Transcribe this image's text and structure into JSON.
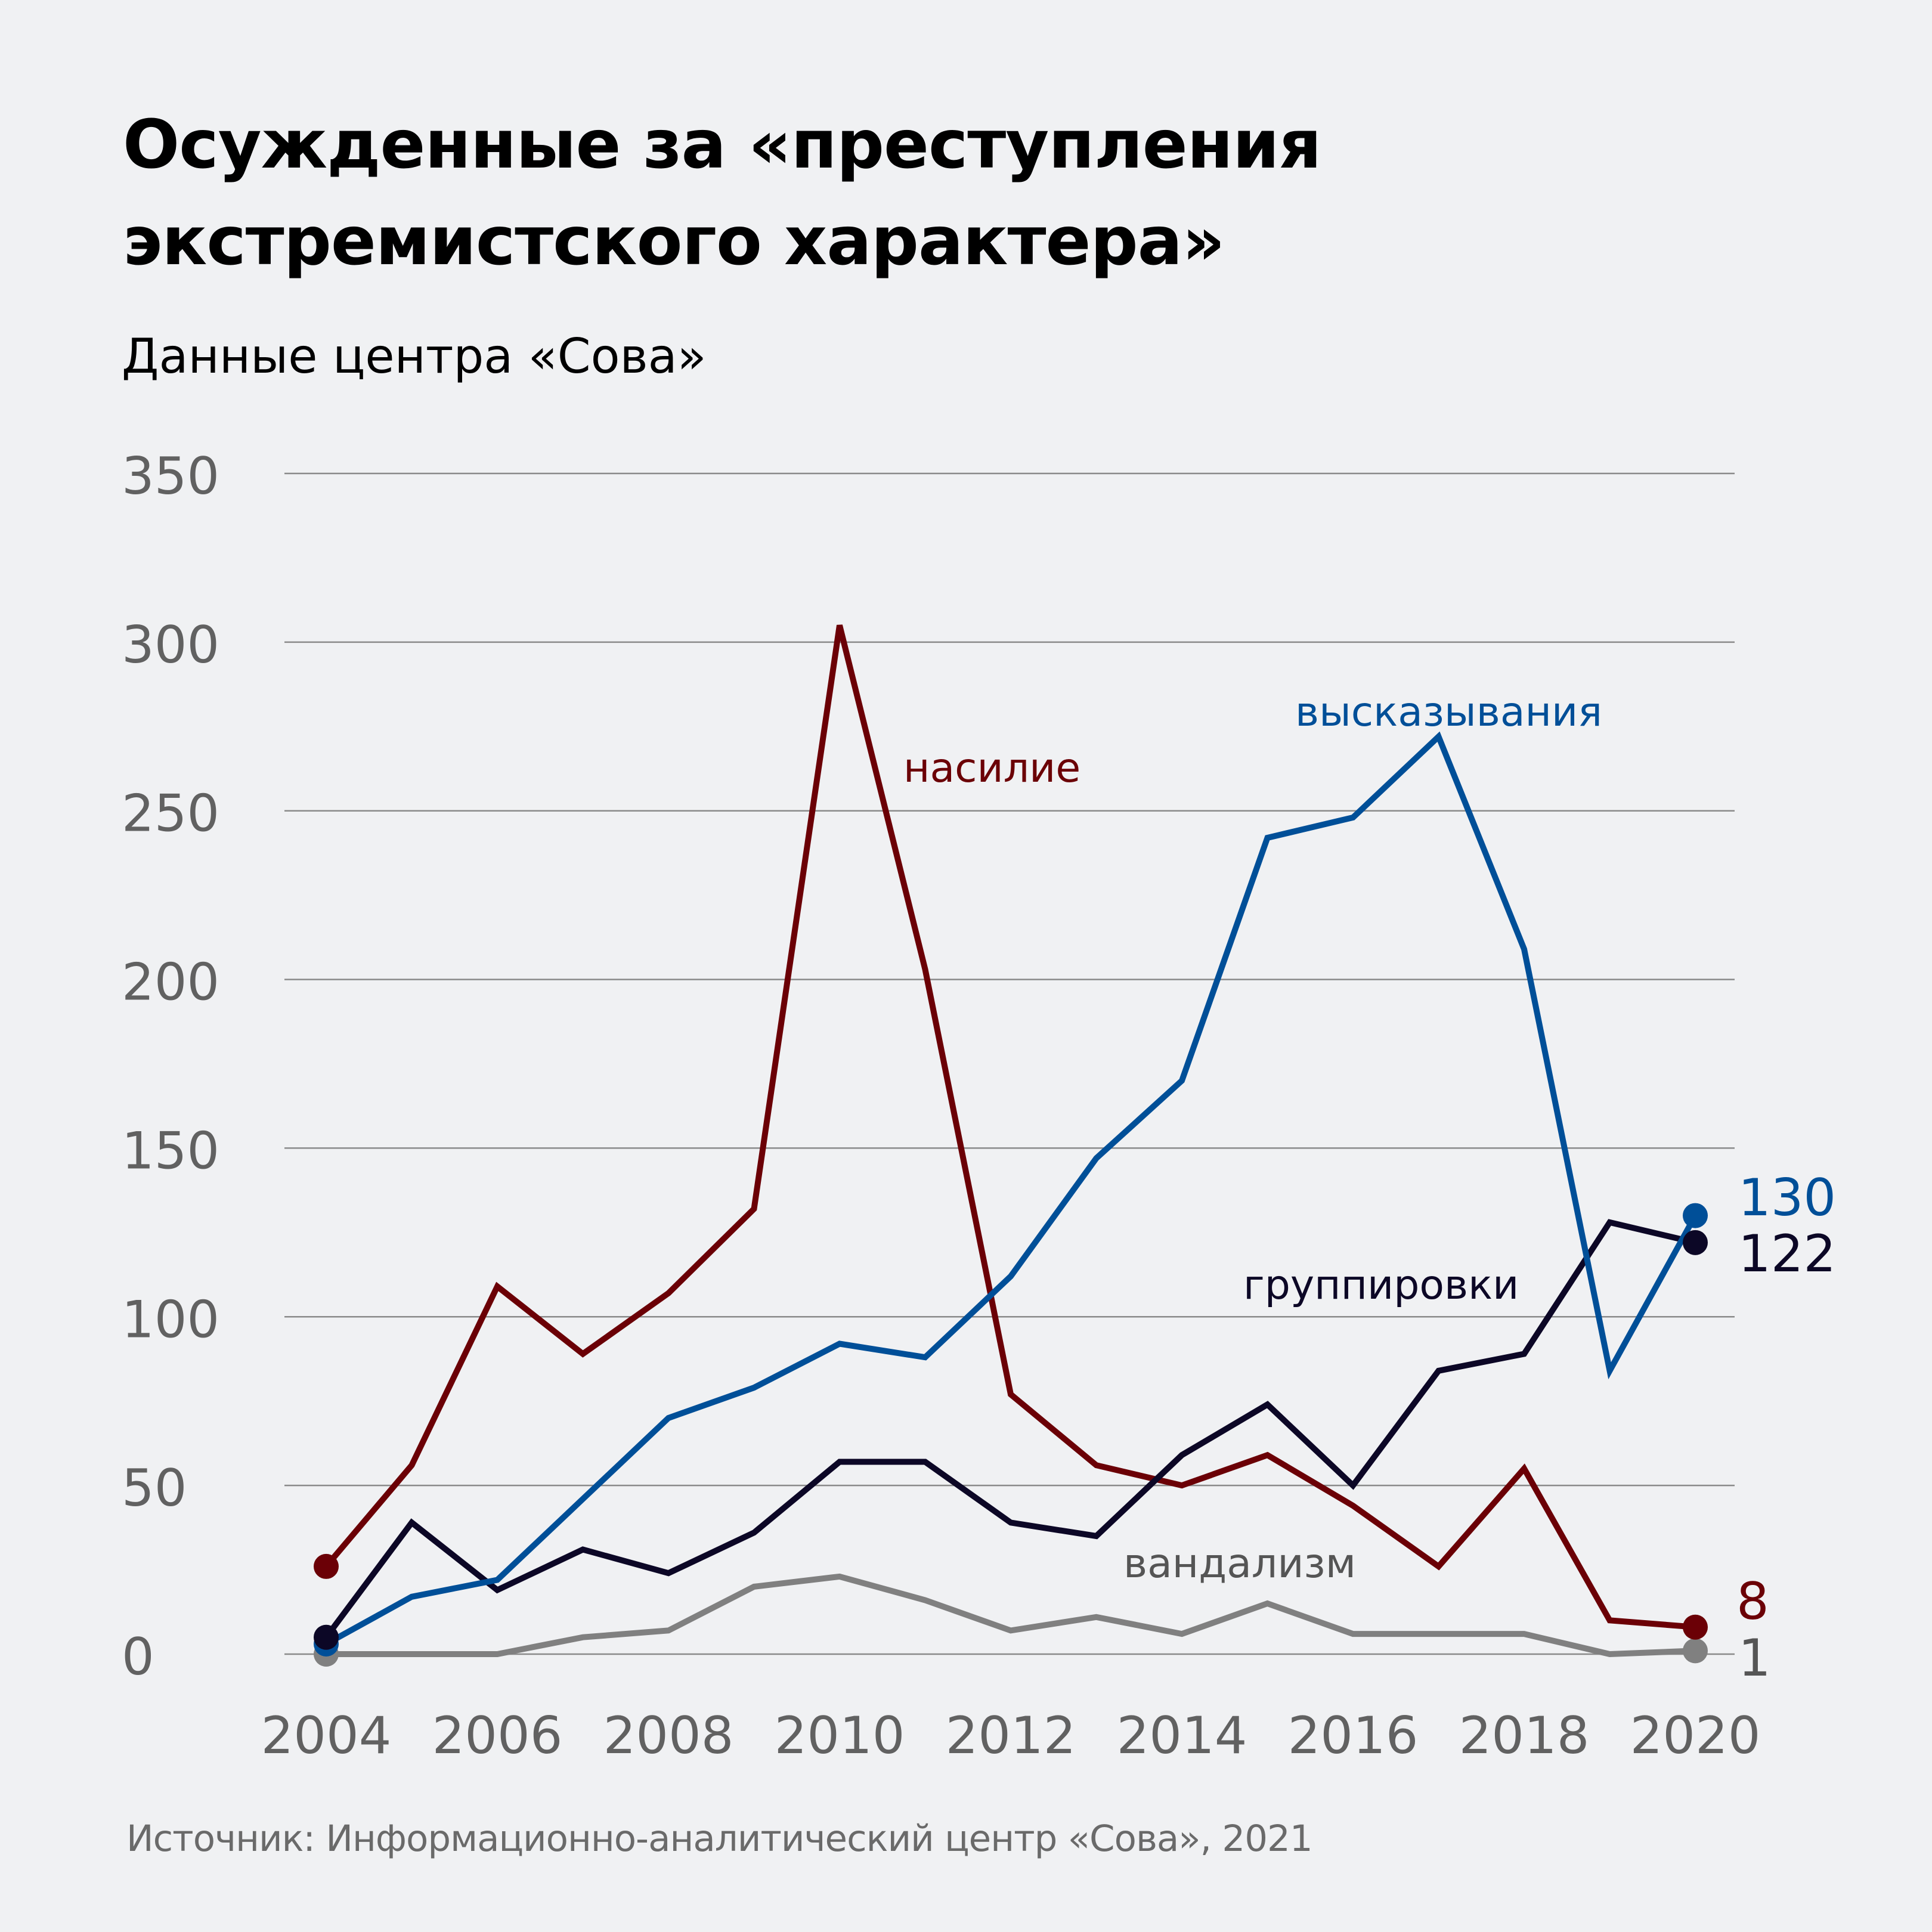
{
  "header": {
    "title_line1": "Осужденные за «преступления",
    "title_line2": "экстремистского характера»",
    "subtitle": "Данные центра «Сова»"
  },
  "footer": {
    "source": "Источник: Информационно-аналитический центр «Сова», 2021"
  },
  "chart_data": {
    "type": "line",
    "title": "Осужденные за «преступления экстремистского характера»",
    "subtitle": "Данные центра «Сова»",
    "xlabel": "",
    "ylabel": "",
    "x": [
      2004,
      2005,
      2006,
      2007,
      2008,
      2009,
      2010,
      2011,
      2012,
      2013,
      2014,
      2015,
      2016,
      2017,
      2018,
      2019,
      2020
    ],
    "xlim": [
      2004,
      2020
    ],
    "ylim": [
      0,
      350
    ],
    "grid": true,
    "y_ticks": [
      "0",
      "50",
      "100",
      "150",
      "200",
      "250",
      "300",
      "350"
    ],
    "y_tick_values": [
      0,
      50,
      100,
      150,
      200,
      250,
      300,
      350
    ],
    "x_ticks": [
      "2004",
      "2006",
      "2008",
      "2010",
      "2012",
      "2014",
      "2016",
      "2018",
      "2020"
    ],
    "x_tick_values": [
      2004,
      2006,
      2008,
      2010,
      2012,
      2014,
      2016,
      2018,
      2020
    ],
    "legend": "inline labels",
    "series": [
      {
        "name": "вандализм",
        "color": "#808080",
        "label_color": "#555555",
        "values": [
          0,
          0,
          0,
          5,
          7,
          20,
          23,
          16,
          7,
          11,
          6,
          15,
          6,
          6,
          6,
          0,
          1
        ],
        "end_label": "1",
        "end_label_color": "#555555"
      },
      {
        "name": "насилие",
        "color": "#6b0006",
        "label_color": "#6b0006",
        "values": [
          26,
          56,
          109,
          89,
          107,
          132,
          305,
          203,
          77,
          56,
          50,
          59,
          44,
          26,
          55,
          10,
          8
        ],
        "end_label": "8",
        "end_label_color": "#6b0006"
      },
      {
        "name": "группировки",
        "color": "#0c0726",
        "label_color": "#0c0726",
        "values": [
          5,
          39,
          19,
          31,
          24,
          36,
          57,
          57,
          39,
          35,
          59,
          74,
          50,
          84,
          89,
          128,
          122
        ],
        "end_label": "122",
        "end_label_color": "#0c0726"
      },
      {
        "name": "высказывания",
        "color": "#004f98",
        "label_color": "#004f98",
        "values": [
          3,
          17,
          22,
          46,
          70,
          79,
          92,
          88,
          112,
          147,
          170,
          242,
          248,
          272,
          209,
          84,
          130
        ],
        "end_label": "130",
        "end_label_color": "#004f98"
      }
    ]
  },
  "colors": {
    "background": "#f0f1f3",
    "grid": "#8a8a8a",
    "tick_text": "#616161",
    "title": "#000000",
    "footer": "#6a6a6a"
  }
}
